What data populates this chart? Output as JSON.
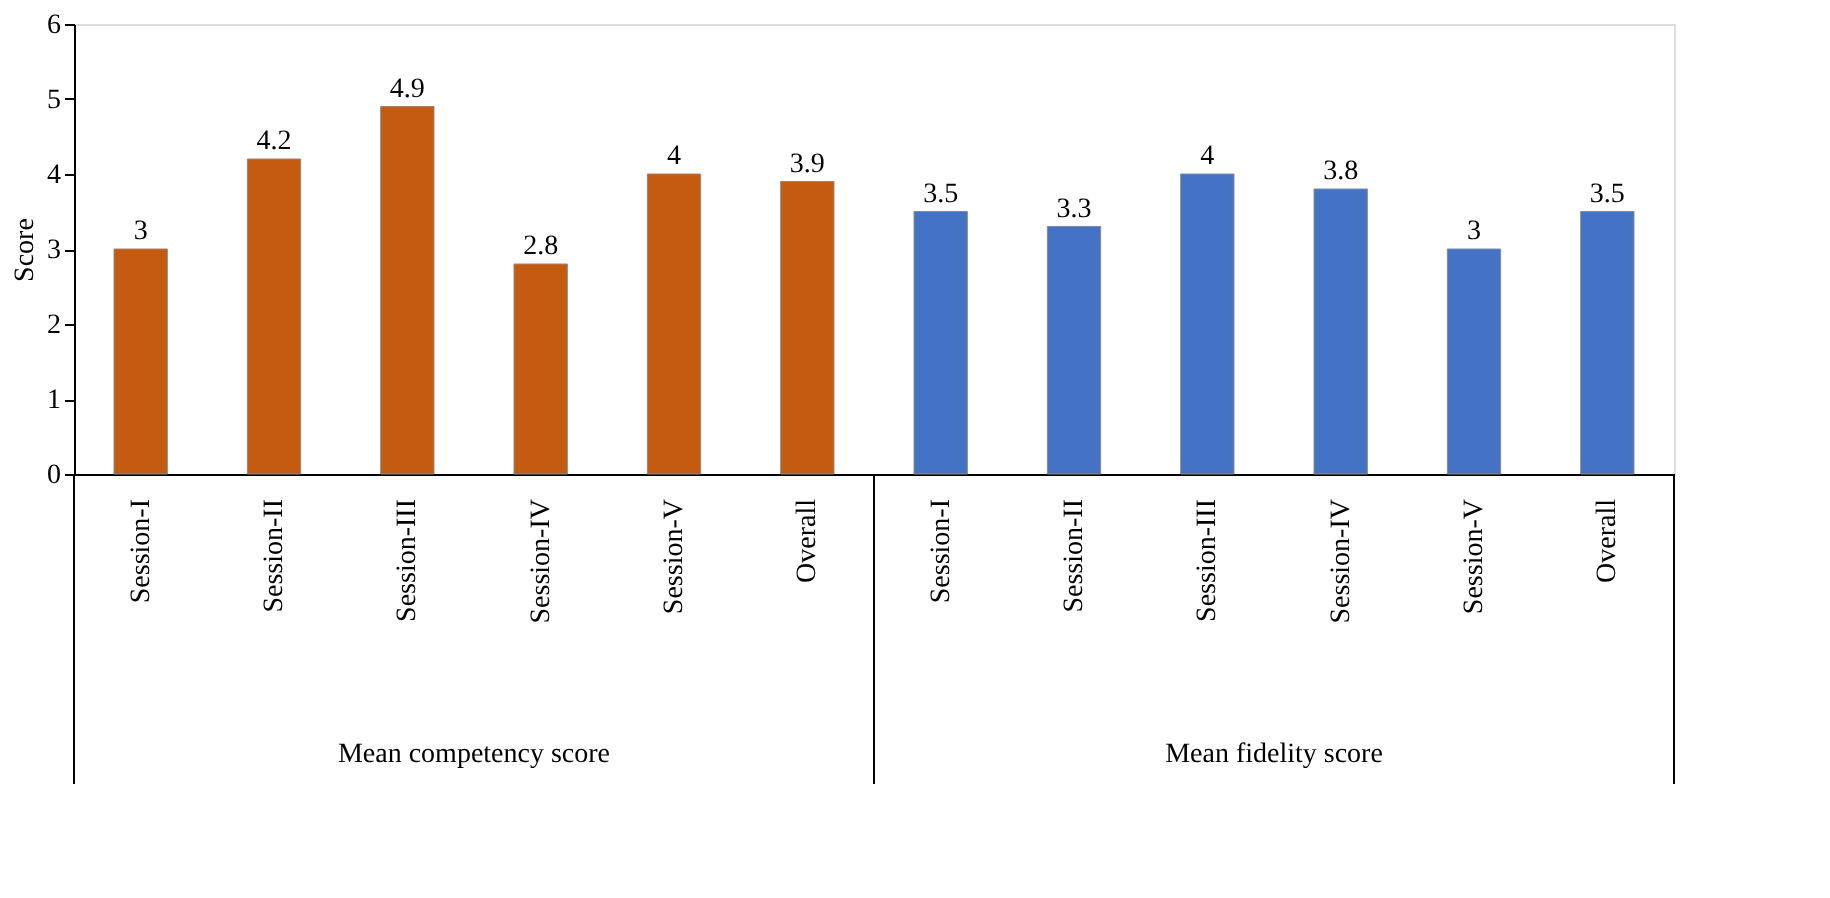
{
  "chart_data": {
    "type": "bar",
    "ylabel": "Score",
    "categories": [
      "Session-I",
      "Session-II",
      "Session-III",
      "Session-IV",
      "Session-V",
      "Overall",
      "Session-I",
      "Session-II",
      "Session-III",
      "Session-IV",
      "Session-V",
      "Overall"
    ],
    "values": [
      3,
      4.2,
      4.9,
      2.8,
      4,
      3.9,
      3.5,
      3.3,
      4,
      3.8,
      3,
      3.5
    ],
    "colors": [
      "#c55a11",
      "#c55a11",
      "#c55a11",
      "#c55a11",
      "#c55a11",
      "#c55a11",
      "#4472c4",
      "#4472c4",
      "#4472c4",
      "#4472c4",
      "#4472c4",
      "#4472c4"
    ],
    "annotations": [
      "Mean competency score",
      "Mean fidelity score"
    ],
    "ylim": [
      0,
      6
    ],
    "yticks": [
      0,
      1,
      2,
      3,
      4,
      5,
      6
    ],
    "grid": false,
    "data_labels": true
  }
}
